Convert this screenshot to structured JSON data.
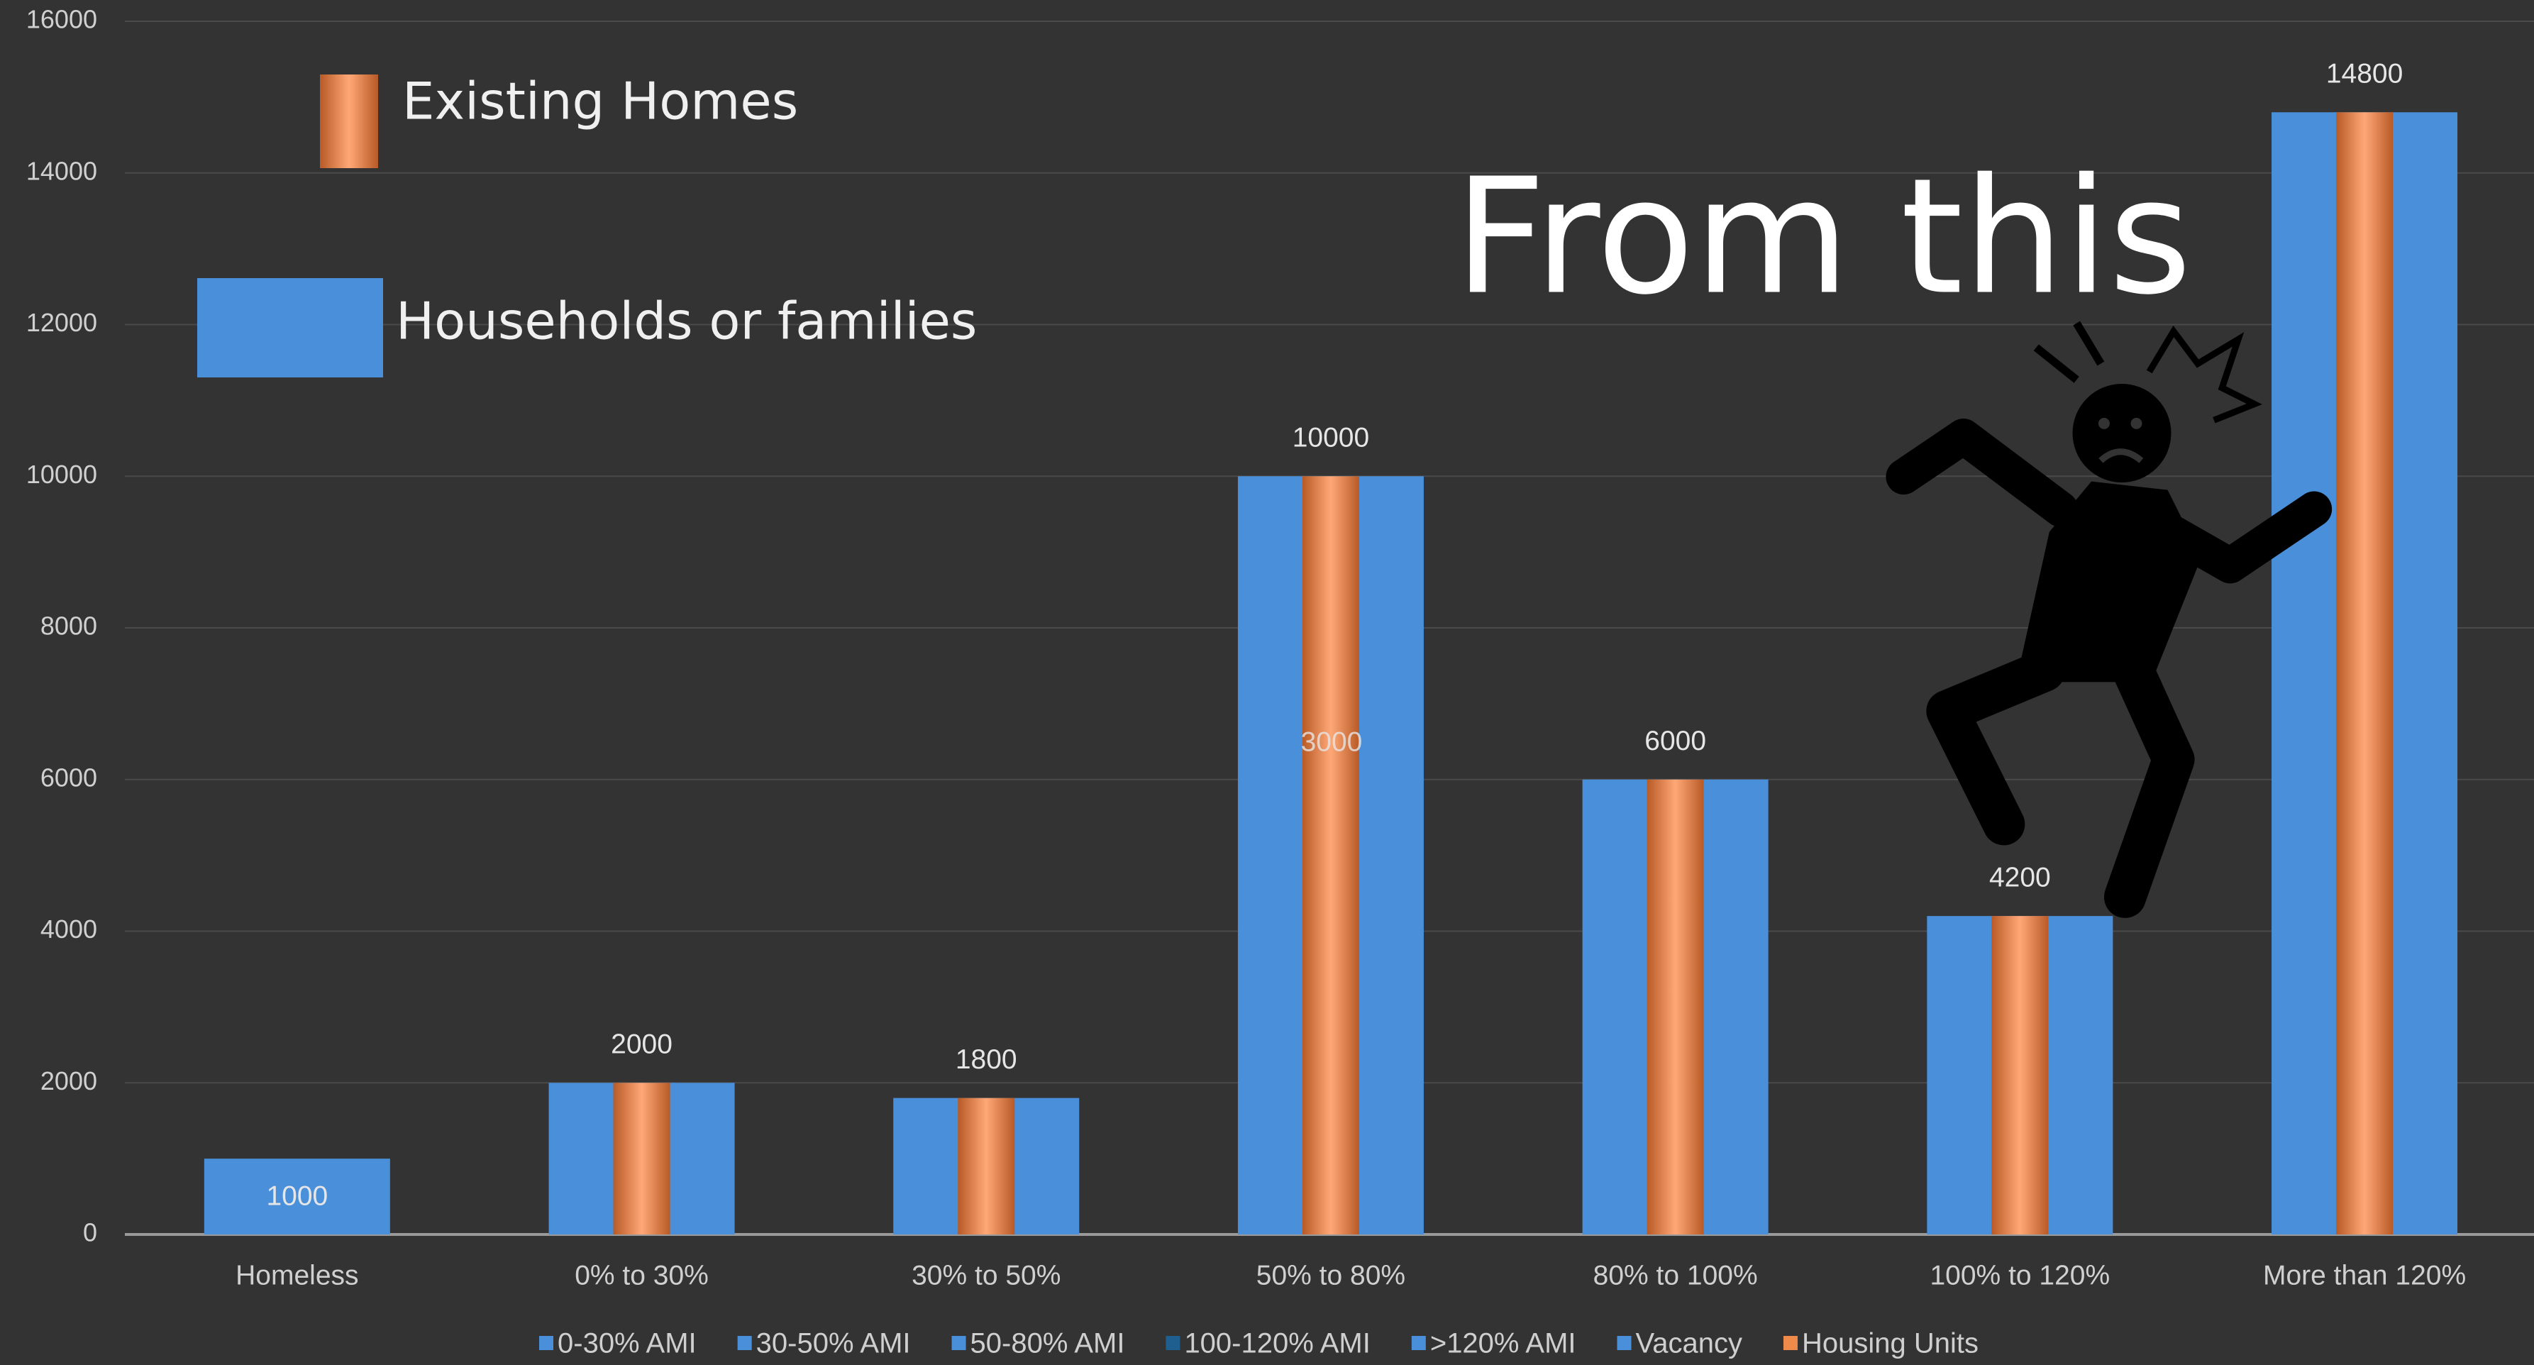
{
  "chart_data": {
    "type": "bar",
    "title": "From this",
    "annotation": "3000",
    "categories": [
      "Homeless",
      "0% to 30%",
      "30% to 50%",
      "50% to 80%",
      "80% to 100%",
      "100% to 120%",
      "More than 120%"
    ],
    "series": [
      {
        "name": "Households or families",
        "color": "#4a8fd9",
        "values": [
          1000,
          2000,
          1800,
          10000,
          6000,
          4200,
          14800
        ]
      },
      {
        "name": "Existing Homes",
        "color": "#f08a4b",
        "values": [
          null,
          2000,
          1800,
          10000,
          6000,
          4200,
          14800
        ]
      }
    ],
    "bottom_legend": [
      {
        "name": "0-30% AMI",
        "color": "#4a8fd9"
      },
      {
        "name": "30-50% AMI",
        "color": "#4a8fd9"
      },
      {
        "name": "50-80% AMI",
        "color": "#4a8fd9"
      },
      {
        "name": "100-120% AMI",
        "color": "#1f5f8f"
      },
      {
        "name": ">120% AMI",
        "color": "#4a8fd9"
      },
      {
        "name": "Vacancy",
        "color": "#4a8fd9"
      },
      {
        "name": "Housing Units",
        "color": "#f08a4b"
      }
    ],
    "ylim": [
      0,
      16000
    ],
    "yticks": [
      0,
      2000,
      4000,
      6000,
      8000,
      10000,
      12000,
      14000,
      16000
    ],
    "grid": true
  }
}
